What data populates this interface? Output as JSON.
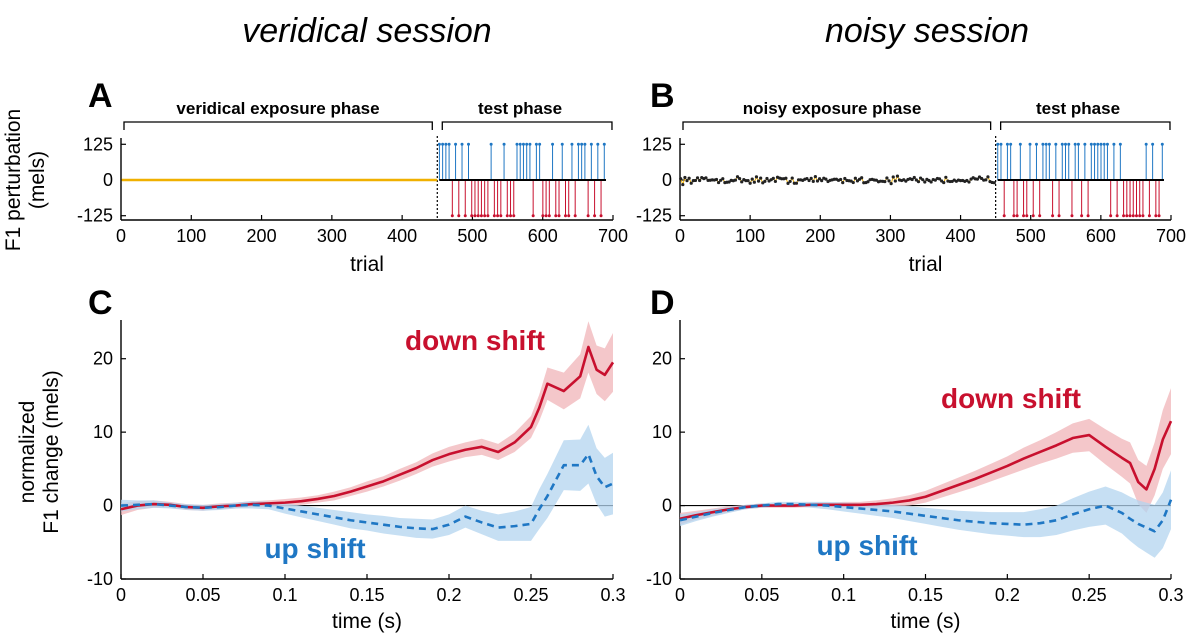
{
  "titles": {
    "left": "veridical session",
    "right": "noisy session"
  },
  "panels": {
    "A": {
      "letter": "A",
      "exposure_label": "veridical exposure phase",
      "test_label": "test phase"
    },
    "B": {
      "letter": "B",
      "exposure_label": "noisy exposure phase",
      "test_label": "test phase"
    },
    "C": {
      "letter": "C",
      "down_label": "down shift",
      "up_label": "up shift"
    },
    "D": {
      "letter": "D",
      "down_label": "down shift",
      "up_label": "up shift"
    }
  },
  "colors": {
    "down": "#c8102e",
    "down_band": "#f0b4b8",
    "up": "#1f77c4",
    "up_band": "#b3d4ef",
    "veridical": "#f0b000",
    "exposure_point": "#222222",
    "axis": "#000000"
  },
  "chart_data": [
    {
      "id": "A",
      "type": "line",
      "xlabel": "trial",
      "ylabel": "F1 perturbation (mels)",
      "xlim": [
        0,
        700
      ],
      "ylim": [
        -140,
        140
      ],
      "xticks": [
        0,
        100,
        200,
        300,
        400,
        500,
        600,
        700
      ],
      "yticks": [
        125,
        0,
        -125
      ],
      "exposure_trials": [
        1,
        450
      ],
      "test_trials": [
        451,
        690
      ],
      "exposure_value": 0,
      "perturbation_magnitude": 125
    },
    {
      "id": "B",
      "type": "scatter",
      "xlabel": "trial",
      "ylabel": "",
      "xlim": [
        0,
        700
      ],
      "ylim": [
        -140,
        140
      ],
      "xticks": [
        0,
        100,
        200,
        300,
        400,
        500,
        600,
        700
      ],
      "yticks": [
        125,
        0,
        -125
      ],
      "exposure_trials": [
        1,
        450
      ],
      "test_trials": [
        451,
        690
      ],
      "exposure_noise_sd": 8,
      "perturbation_magnitude": 125
    },
    {
      "id": "C",
      "type": "line",
      "xlabel": "time (s)",
      "ylabel": "normalized F1 change (mels)",
      "xlim": [
        0,
        0.3
      ],
      "ylim": [
        -10,
        25
      ],
      "xticks": [
        0,
        0.05,
        0.1,
        0.15,
        0.2,
        0.25,
        0.3
      ],
      "yticks": [
        -10,
        0,
        10,
        20
      ],
      "x": [
        0,
        0.01,
        0.02,
        0.03,
        0.04,
        0.05,
        0.06,
        0.07,
        0.08,
        0.09,
        0.1,
        0.11,
        0.12,
        0.13,
        0.14,
        0.15,
        0.16,
        0.17,
        0.18,
        0.19,
        0.2,
        0.21,
        0.22,
        0.23,
        0.24,
        0.25,
        0.255,
        0.26,
        0.27,
        0.28,
        0.285,
        0.29,
        0.295,
        0.3
      ],
      "series": [
        {
          "name": "down shift",
          "values": [
            -0.5,
            0,
            0.2,
            0.1,
            -0.2,
            -0.3,
            -0.1,
            0,
            0.2,
            0.3,
            0.4,
            0.6,
            0.9,
            1.3,
            1.9,
            2.6,
            3.3,
            4.2,
            5.1,
            6.2,
            7,
            7.6,
            8,
            7.3,
            8.6,
            10.7,
            13.3,
            16.6,
            15.6,
            17.6,
            21.6,
            18.5,
            17.8,
            19.5
          ],
          "band": [
            0.8,
            0.6,
            0.5,
            0.4,
            0.4,
            0.4,
            0.4,
            0.4,
            0.4,
            0.4,
            0.5,
            0.5,
            0.5,
            0.6,
            0.6,
            0.7,
            0.7,
            0.8,
            0.8,
            0.9,
            1,
            1,
            1.1,
            1.1,
            1.3,
            1.5,
            1.8,
            2.2,
            2.5,
            3,
            3.5,
            3.3,
            3.6,
            4
          ]
        },
        {
          "name": "up shift",
          "values": [
            0,
            0.1,
            0.2,
            0,
            -0.2,
            -0.3,
            -0.2,
            0,
            0.1,
            0,
            -0.4,
            -0.8,
            -1.2,
            -1.6,
            -2,
            -2.3,
            -2.6,
            -2.9,
            -3.1,
            -3.2,
            -2.6,
            -1.5,
            -2.3,
            -3,
            -2.8,
            -2.5,
            -0.5,
            1.3,
            5.5,
            5.5,
            7,
            4,
            2.5,
            3
          ],
          "band": [
            0.8,
            0.6,
            0.5,
            0.4,
            0.4,
            0.4,
            0.4,
            0.4,
            0.5,
            0.5,
            0.7,
            0.8,
            0.9,
            1,
            1.1,
            1.1,
            1.2,
            1.2,
            1.3,
            1.3,
            1.4,
            1.5,
            1.6,
            1.8,
            2,
            2.3,
            2.7,
            3,
            3.4,
            3.5,
            4,
            3.8,
            4,
            4.2
          ]
        }
      ]
    },
    {
      "id": "D",
      "type": "line",
      "xlabel": "time (s)",
      "ylabel": "",
      "xlim": [
        0,
        0.3
      ],
      "ylim": [
        -10,
        25
      ],
      "xticks": [
        0,
        0.05,
        0.1,
        0.15,
        0.2,
        0.25,
        0.3
      ],
      "yticks": [
        -10,
        0,
        10,
        20
      ],
      "x": [
        0,
        0.01,
        0.02,
        0.03,
        0.04,
        0.05,
        0.06,
        0.07,
        0.08,
        0.09,
        0.1,
        0.11,
        0.12,
        0.13,
        0.14,
        0.15,
        0.16,
        0.17,
        0.18,
        0.19,
        0.2,
        0.21,
        0.22,
        0.23,
        0.24,
        0.25,
        0.26,
        0.27,
        0.275,
        0.28,
        0.285,
        0.29,
        0.295,
        0.3
      ],
      "series": [
        {
          "name": "down shift",
          "values": [
            -1.8,
            -1.3,
            -0.9,
            -0.5,
            -0.2,
            0,
            0,
            0,
            0.1,
            0.1,
            0.1,
            0.1,
            0.2,
            0.4,
            0.7,
            1.2,
            2,
            2.8,
            3.6,
            4.5,
            5.4,
            6.4,
            7.3,
            8.2,
            9.2,
            9.6,
            8,
            6.5,
            5.8,
            3.2,
            2.2,
            5,
            9,
            11.5
          ],
          "band": [
            0.8,
            0.6,
            0.5,
            0.4,
            0.3,
            0.3,
            0.3,
            0.3,
            0.3,
            0.3,
            0.4,
            0.4,
            0.5,
            0.6,
            0.7,
            0.8,
            0.9,
            1,
            1.1,
            1.2,
            1.3,
            1.5,
            1.6,
            1.8,
            2,
            2.2,
            2.4,
            2.6,
            2.8,
            3,
            3.2,
            3.6,
            4,
            4.5
          ]
        },
        {
          "name": "up shift",
          "values": [
            -2,
            -1.5,
            -1,
            -0.6,
            -0.2,
            0,
            0.2,
            0.2,
            0.1,
            0,
            -0.2,
            -0.4,
            -0.6,
            -0.8,
            -1.1,
            -1.4,
            -1.7,
            -2,
            -2.2,
            -2.4,
            -2.5,
            -2.6,
            -2.4,
            -2,
            -1.2,
            -0.5,
            0,
            -1,
            -1.8,
            -2.5,
            -3,
            -3.5,
            -2,
            0.8
          ],
          "band": [
            0.8,
            0.6,
            0.5,
            0.4,
            0.3,
            0.3,
            0.3,
            0.3,
            0.4,
            0.5,
            0.6,
            0.7,
            0.8,
            0.9,
            1,
            1.1,
            1.2,
            1.3,
            1.4,
            1.5,
            1.6,
            1.7,
            1.9,
            2,
            2.2,
            2.4,
            2.6,
            2.8,
            3,
            3.2,
            3.4,
            3.6,
            3.8,
            4
          ]
        }
      ]
    }
  ]
}
